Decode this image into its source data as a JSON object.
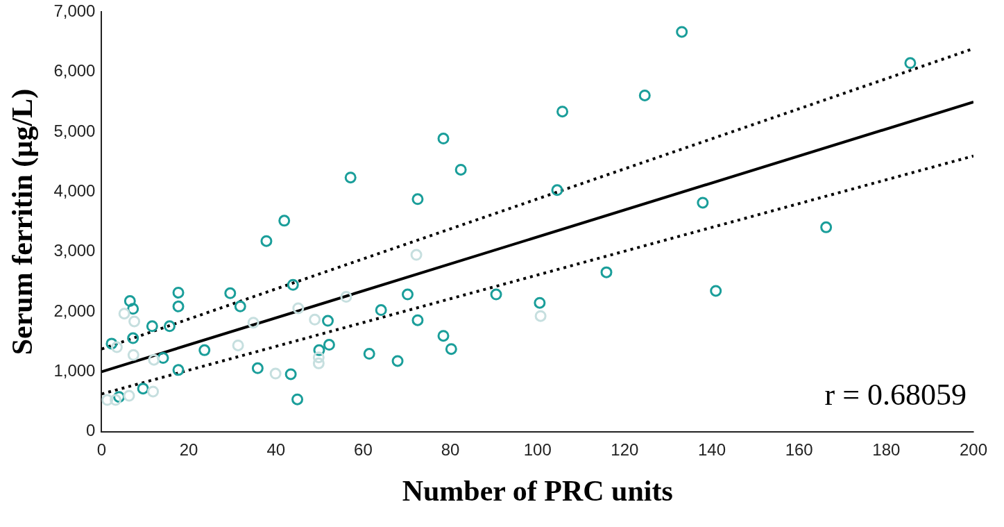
{
  "chart_data": {
    "type": "scatter",
    "xlabel": "Number of PRC units",
    "ylabel": "Serum ferritin (µg/L)",
    "xlim": [
      0,
      200
    ],
    "xticks": [
      0,
      20,
      40,
      60,
      80,
      100,
      120,
      140,
      160,
      180,
      200
    ],
    "ylim": [
      0,
      7000
    ],
    "yticks": [
      {
        "value": 0,
        "label": "0"
      },
      {
        "value": 1000,
        "label": "1,000"
      },
      {
        "value": 2000,
        "label": "2,000"
      },
      {
        "value": 3000,
        "label": "3,000"
      },
      {
        "value": 4000,
        "label": "4,000"
      },
      {
        "value": 5000,
        "label": "5,000"
      },
      {
        "value": 6000,
        "label": "6,000"
      },
      {
        "value": 7000,
        "label": "7,000"
      }
    ],
    "grid": false,
    "legend": false,
    "marker": "circle",
    "annotations": [
      "r = 0.68059"
    ],
    "series": [
      {
        "type": "scatter",
        "color": "#c6dfdf",
        "x": [
          1.3,
          3.2,
          3.5,
          5.2,
          7.5,
          7.3,
          6.3,
          11.8,
          12,
          31.3,
          34.8,
          45.1,
          48.9,
          49.8,
          49.8,
          39.9,
          56.1,
          72.2,
          100.7
        ],
        "values": [
          530,
          530,
          1410,
          1970,
          1840,
          1280,
          600,
          670,
          1200,
          1440,
          1820,
          2060,
          1870,
          1240,
          1140,
          970,
          2250,
          2950,
          1930
        ]
      },
      {
        "type": "scatter",
        "color": "#1a9e9a",
        "x": [
          2.3,
          6.5,
          7.2,
          7.2,
          4,
          11.6,
          15.6,
          17.6,
          17.6,
          14.1,
          9.5,
          17.6,
          23.6,
          29.5,
          31.8,
          35.8,
          37.8,
          41.9,
          43.9,
          43.4,
          44.9,
          49.9,
          51.9,
          52.2,
          57.1,
          61.4,
          64.1,
          67.9,
          70.2,
          72.5,
          72.5,
          78.4,
          78.4,
          80.2,
          82.4,
          90.5,
          100.5,
          104.5,
          105.7,
          115.8,
          124.6,
          133.1,
          137.9,
          140.9,
          166.2,
          185.5
        ],
        "values": [
          1470,
          2180,
          2050,
          1560,
          580,
          1760,
          1760,
          2320,
          2090,
          1230,
          720,
          1030,
          1360,
          2310,
          2090,
          1060,
          3180,
          3520,
          2450,
          960,
          540,
          1360,
          1850,
          1450,
          4240,
          1300,
          2030,
          1180,
          2290,
          3880,
          1860,
          4890,
          1600,
          1380,
          4370,
          2290,
          2150,
          4030,
          5340,
          2660,
          5610,
          6670,
          3820,
          2350,
          3410,
          6150
        ]
      },
      {
        "type": "line",
        "color": "#000000",
        "line_style": "solid",
        "marker": "none",
        "x": [
          0,
          200
        ],
        "values": [
          1000,
          5500
        ]
      },
      {
        "type": "line",
        "color": "#000000",
        "line_style": "dotted",
        "marker": "none",
        "x": [
          0,
          200
        ],
        "values": [
          1380,
          6390
        ]
      },
      {
        "type": "line",
        "color": "#000000",
        "line_style": "dotted",
        "marker": "none",
        "x": [
          0,
          200
        ],
        "values": [
          630,
          4600
        ]
      }
    ]
  }
}
